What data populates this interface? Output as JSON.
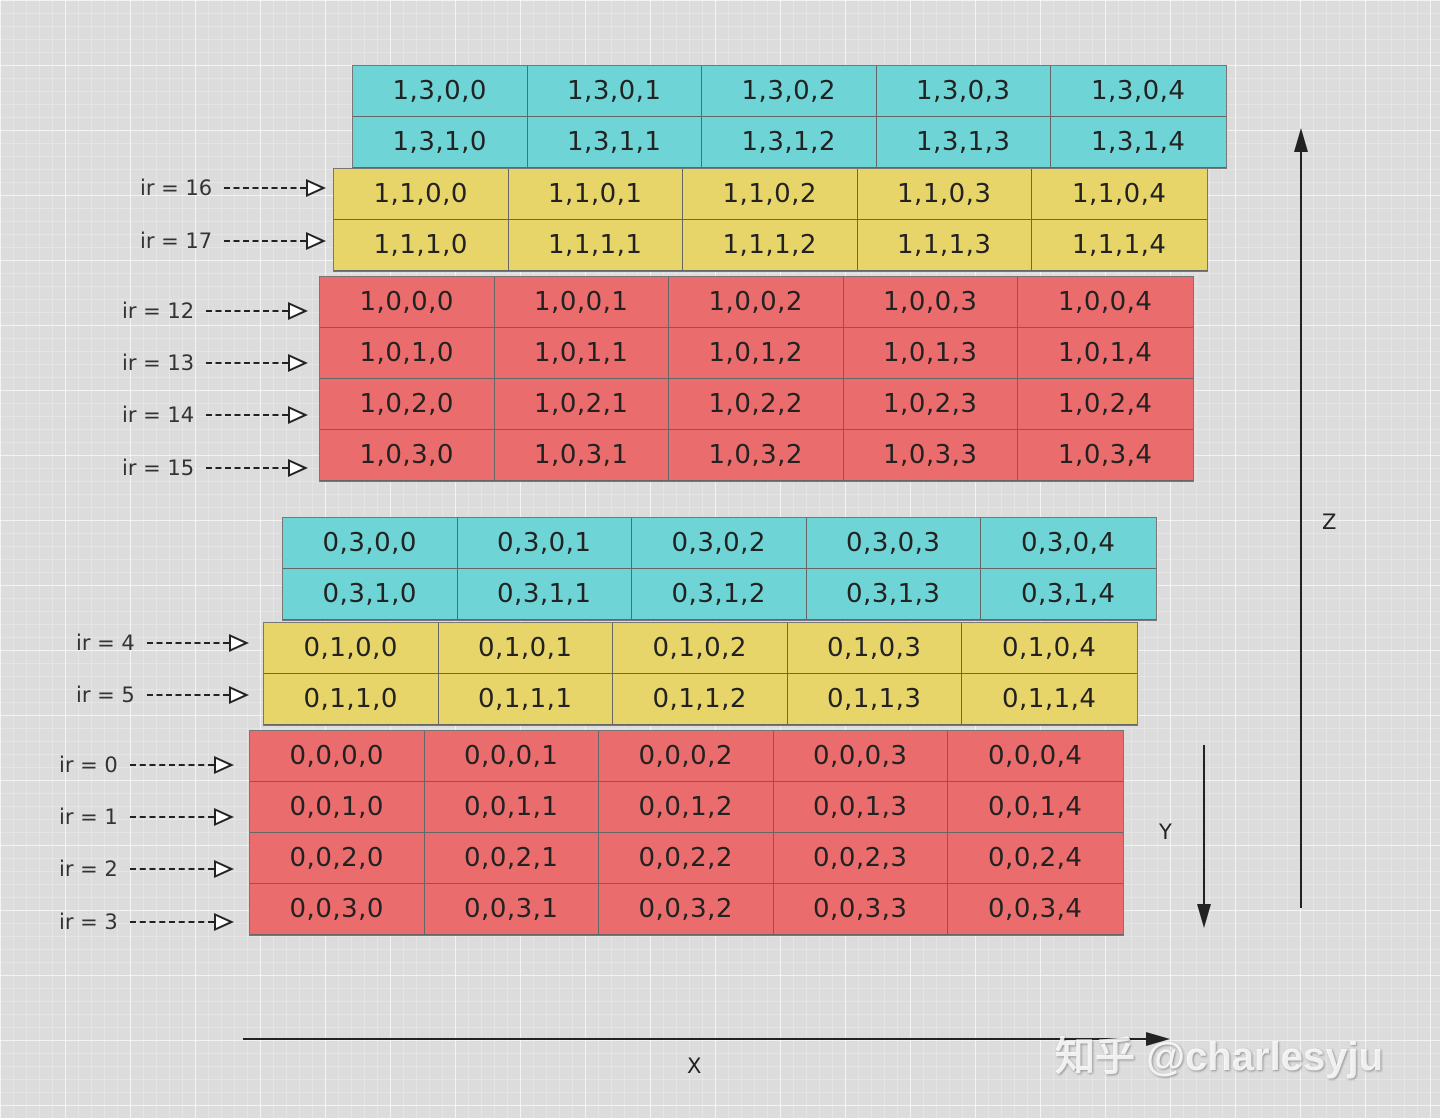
{
  "layers": [
    {
      "id": "L1-cyan",
      "color": "#6fd4d5",
      "cells": [
        "1,3,0,0",
        "1,3,0,1",
        "1,3,0,2",
        "1,3,0,3",
        "1,3,0,4",
        "1,3,1,0",
        "1,3,1,1",
        "1,3,1,2",
        "1,3,1,3",
        "1,3,1,4"
      ]
    },
    {
      "id": "L1-yellow",
      "color": "#e8d56a",
      "cells": [
        "1,1,0,0",
        "1,1,0,1",
        "1,1,0,2",
        "1,1,0,3",
        "1,1,0,4",
        "1,1,1,0",
        "1,1,1,1",
        "1,1,1,2",
        "1,1,1,3",
        "1,1,1,4"
      ]
    },
    {
      "id": "L1-red",
      "color": "#eb6c6c",
      "cells": [
        "1,0,0,0",
        "1,0,0,1",
        "1,0,0,2",
        "1,0,0,3",
        "1,0,0,4",
        "1,0,1,0",
        "1,0,1,1",
        "1,0,1,2",
        "1,0,1,3",
        "1,0,1,4",
        "1,0,2,0",
        "1,0,2,1",
        "1,0,2,2",
        "1,0,2,3",
        "1,0,2,4",
        "1,0,3,0",
        "1,0,3,1",
        "1,0,3,2",
        "1,0,3,3",
        "1,0,3,4"
      ]
    },
    {
      "id": "L0-cyan",
      "color": "#6fd4d5",
      "cells": [
        "0,3,0,0",
        "0,3,0,1",
        "0,3,0,2",
        "0,3,0,3",
        "0,3,0,4",
        "0,3,1,0",
        "0,3,1,1",
        "0,3,1,2",
        "0,3,1,3",
        "0,3,1,4"
      ]
    },
    {
      "id": "L0-yellow",
      "color": "#e8d56a",
      "cells": [
        "0,1,0,0",
        "0,1,0,1",
        "0,1,0,2",
        "0,1,0,3",
        "0,1,0,4",
        "0,1,1,0",
        "0,1,1,1",
        "0,1,1,2",
        "0,1,1,3",
        "0,1,1,4"
      ]
    },
    {
      "id": "L0-red",
      "color": "#eb6c6c",
      "cells": [
        "0,0,0,0",
        "0,0,0,1",
        "0,0,0,2",
        "0,0,0,3",
        "0,0,0,4",
        "0,0,1,0",
        "0,0,1,1",
        "0,0,1,2",
        "0,0,1,3",
        "0,0,1,4",
        "0,0,2,0",
        "0,0,2,1",
        "0,0,2,2",
        "0,0,2,3",
        "0,0,2,4",
        "0,0,3,0",
        "0,0,3,1",
        "0,0,3,2",
        "0,0,3,3",
        "0,0,3,4"
      ]
    }
  ],
  "ir_labels": [
    "ir = 16",
    "ir = 17",
    "ir = 12",
    "ir = 13",
    "ir = 14",
    "ir = 15",
    "ir = 4",
    "ir = 5",
    "ir = 0",
    "ir = 1",
    "ir = 2",
    "ir = 3"
  ],
  "axes": {
    "x": "X",
    "y": "Y",
    "z": "Z"
  },
  "watermark": "知乎 @charlesyju"
}
